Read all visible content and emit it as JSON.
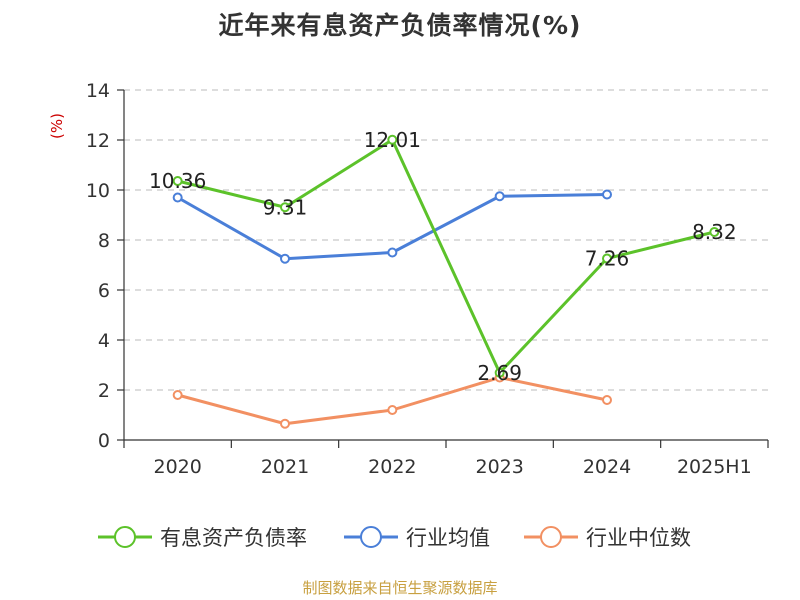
{
  "chart_data": {
    "type": "line",
    "title": "近年来有息资产负债率情况(%)",
    "ylabel": "(%)",
    "categories": [
      "2020",
      "2021",
      "2022",
      "2023",
      "2024",
      "2025H1"
    ],
    "ylim": [
      0,
      14
    ],
    "yticks": [
      0,
      2,
      4,
      6,
      8,
      10,
      12,
      14
    ],
    "grid": true,
    "legend_position": "bottom",
    "series": [
      {
        "name": "有息资产负债率",
        "color": "#5cc22a",
        "values": [
          10.36,
          9.31,
          12.01,
          2.69,
          7.26,
          8.32
        ],
        "labels": [
          "10.36",
          "9.31",
          "12.01",
          "2.69",
          "7.26",
          "8.32"
        ]
      },
      {
        "name": "行业均值",
        "color": "#4a7fd8",
        "values": [
          9.7,
          7.25,
          7.5,
          9.75,
          9.82,
          null
        ]
      },
      {
        "name": "行业中位数",
        "color": "#f29062",
        "values": [
          1.8,
          0.65,
          1.2,
          2.5,
          1.6,
          null
        ]
      }
    ]
  },
  "source": "制图数据来自恒生聚源数据库"
}
